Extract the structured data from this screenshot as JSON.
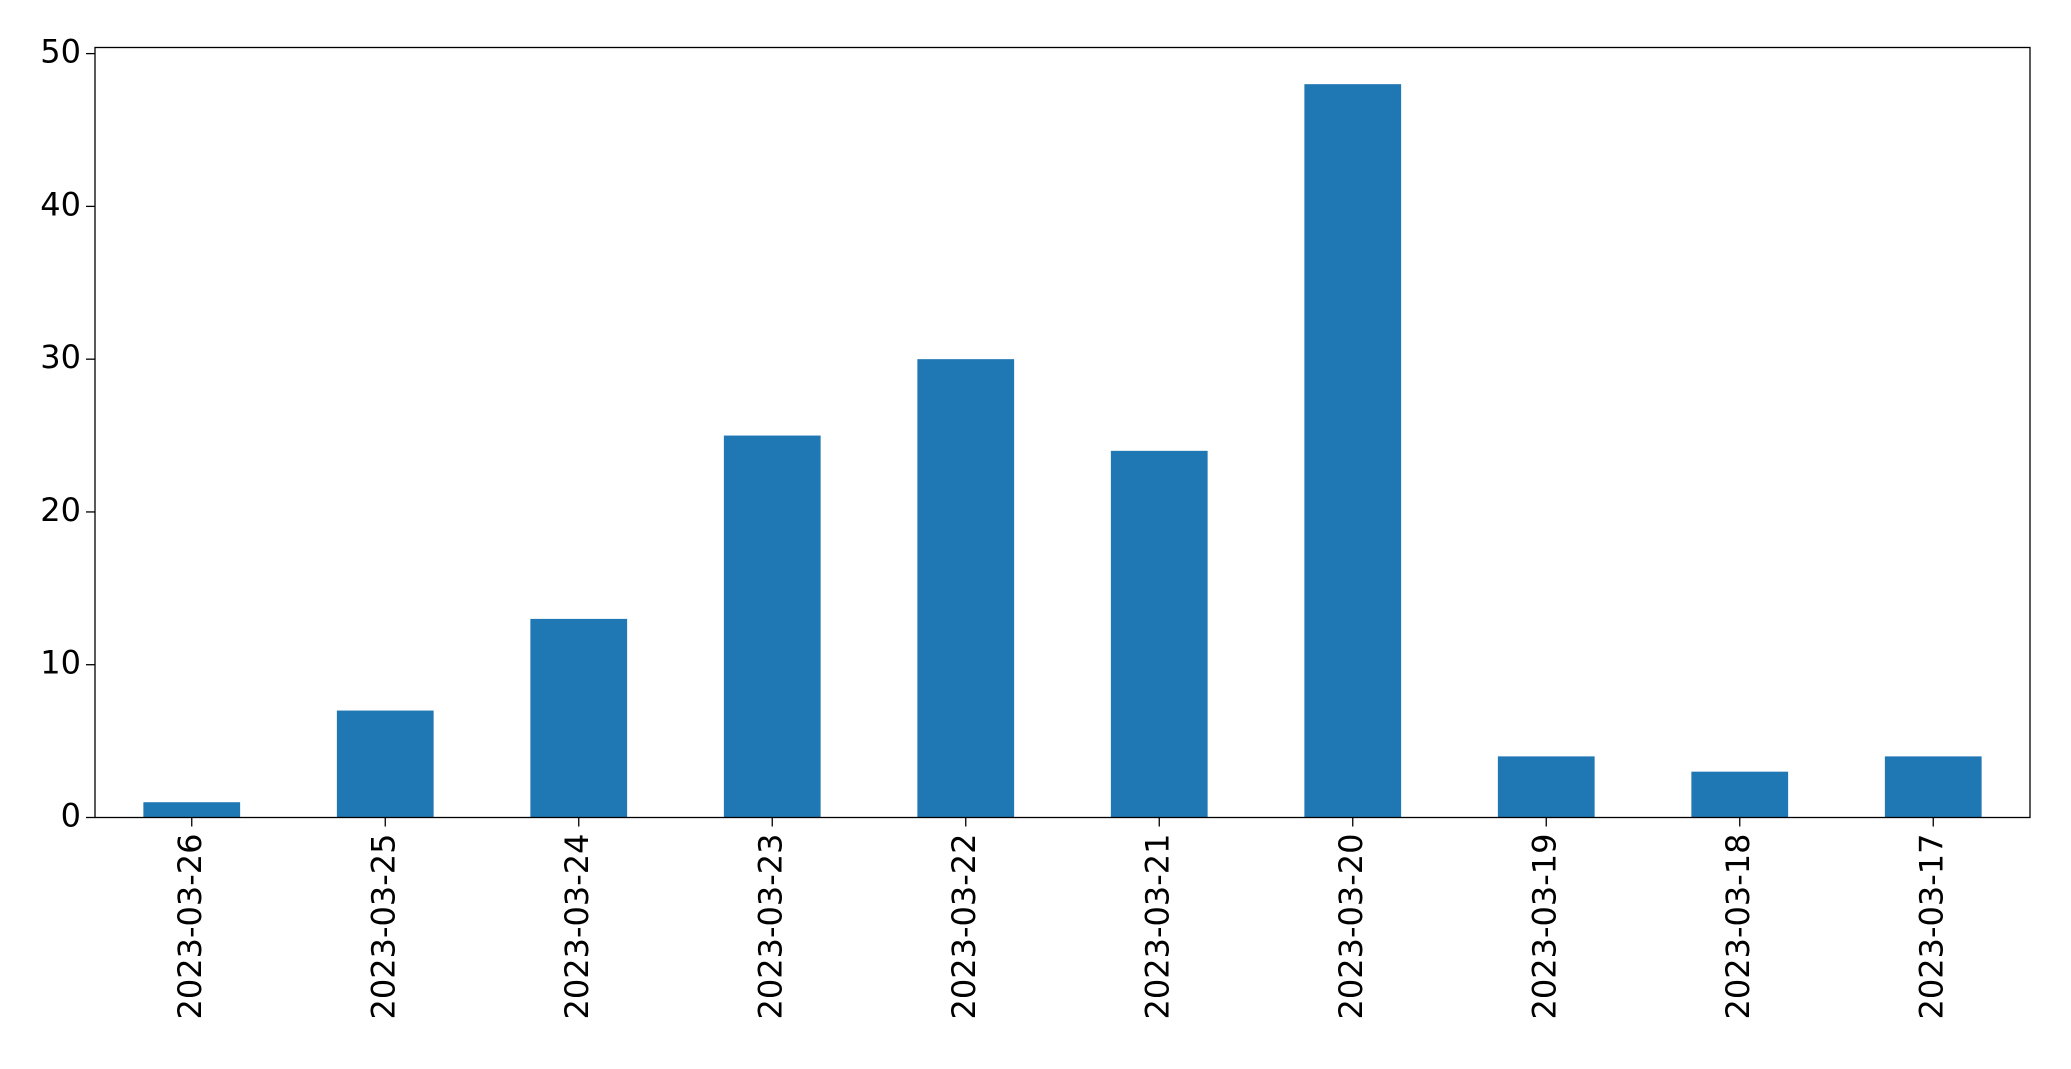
{
  "chart_data": {
    "type": "bar",
    "categories": [
      "2023-03-26",
      "2023-03-25",
      "2023-03-24",
      "2023-03-23",
      "2023-03-22",
      "2023-03-21",
      "2023-03-20",
      "2023-03-19",
      "2023-03-18",
      "2023-03-17"
    ],
    "values": [
      1,
      7,
      13,
      25,
      30,
      24,
      48,
      4,
      3,
      4
    ],
    "color": "#1f77b4",
    "ylim": [
      0,
      50.4
    ],
    "yticks": [
      0,
      10,
      20,
      30,
      40,
      50
    ],
    "grid": false
  }
}
